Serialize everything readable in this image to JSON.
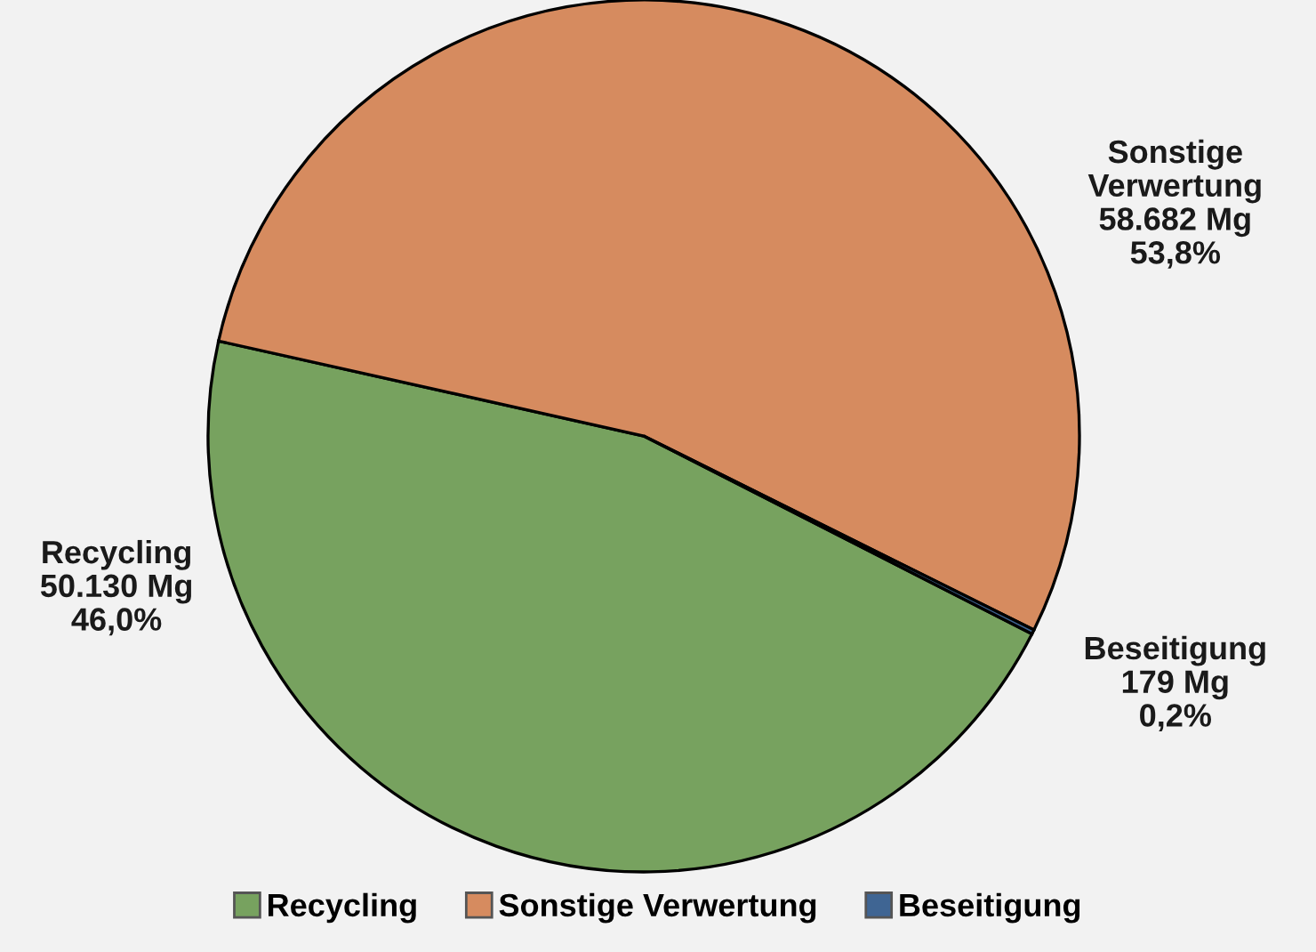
{
  "chart_data": {
    "type": "pie",
    "categories": [
      "Recycling",
      "Sonstige Verwertung",
      "Beseitigung"
    ],
    "values": [
      50130,
      58682,
      179
    ],
    "colors": [
      "#77a25f",
      "#d68b5f",
      "#3f6593"
    ],
    "value_labels": [
      "50.130 Mg\n46,0%",
      "58.682 Mg\n53,8%",
      "179 Mg\n0,2%"
    ],
    "legend": "bottom"
  }
}
